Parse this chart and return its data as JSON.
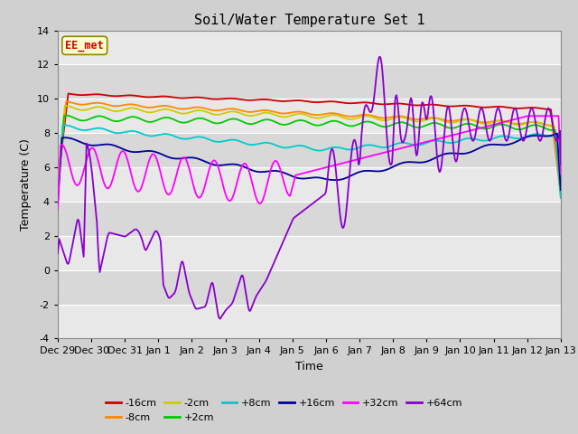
{
  "title": "Soil/Water Temperature Set 1",
  "xlabel": "Time",
  "ylabel": "Temperature (C)",
  "xlim": [
    0,
    15
  ],
  "ylim": [
    -4,
    14
  ],
  "yticks": [
    -4,
    -2,
    0,
    2,
    4,
    6,
    8,
    10,
    12,
    14
  ],
  "xtick_labels": [
    "Dec 29",
    "Dec 30",
    "Dec 31",
    "Jan 1",
    "Jan 2",
    "Jan 3",
    "Jan 4",
    "Jan 5",
    "Jan 6",
    "Jan 7",
    "Jan 8",
    "Jan 9",
    "Jan 10",
    "Jan 11",
    "Jan 12",
    "Jan 13"
  ],
  "bg_color": "#d8d8d8",
  "plot_bg": "#d8d8d8",
  "grid_color": "#f0f0f0",
  "watermark_text": "EE_met",
  "watermark_bg": "#ffffcc",
  "watermark_border": "#888800",
  "watermark_text_color": "#cc0000",
  "legend_entries": [
    "-16cm",
    "-8cm",
    "-2cm",
    "+2cm",
    "+8cm",
    "+16cm",
    "+32cm",
    "+64cm"
  ],
  "legend_colors": [
    "#cc0000",
    "#ff8800",
    "#cccc00",
    "#00cc00",
    "#00cccc",
    "#000099",
    "#ff00ff",
    "#8800cc"
  ]
}
